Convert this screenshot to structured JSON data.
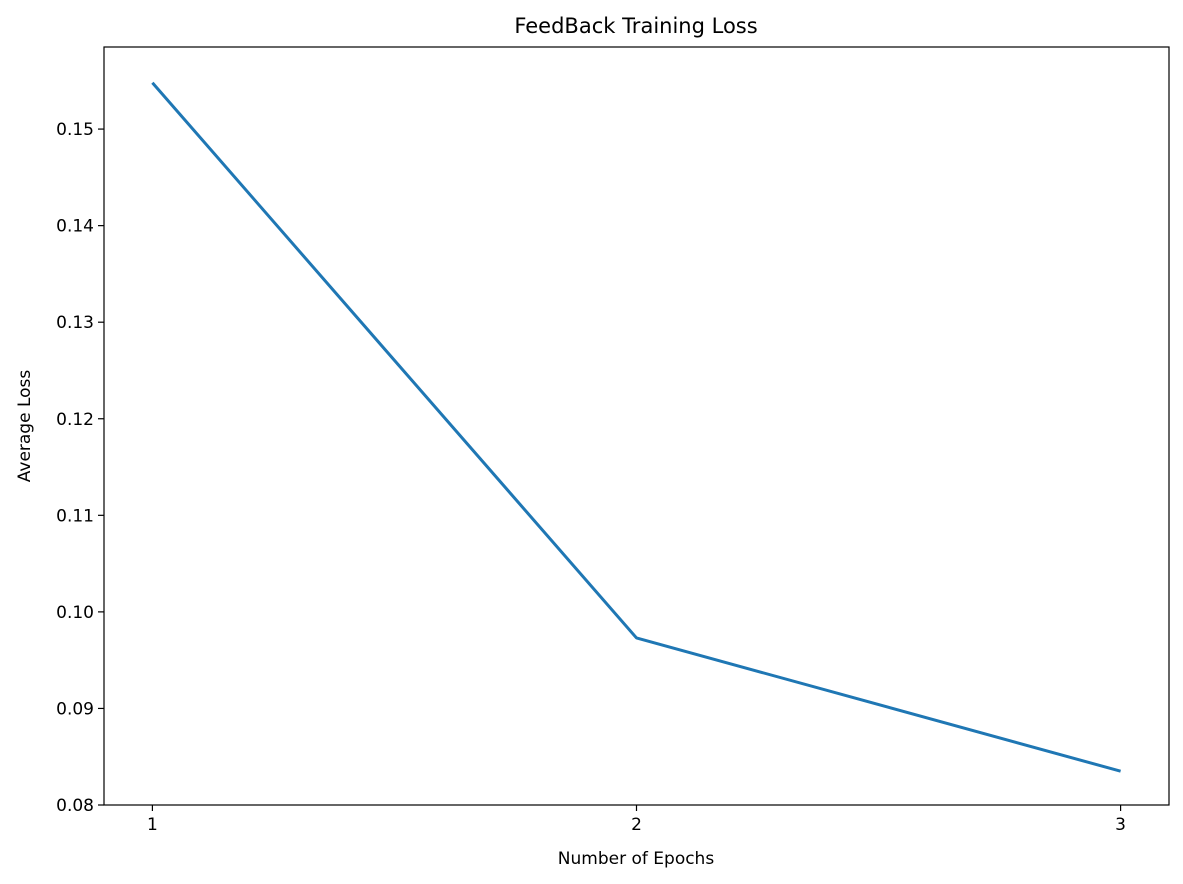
{
  "chart_data": {
    "type": "line",
    "title": "FeedBack Training Loss",
    "xlabel": "Number of Epochs",
    "ylabel": "Average Loss",
    "x": [
      1,
      2,
      3
    ],
    "series": [
      {
        "values": [
          0.1548,
          0.0973,
          0.0835
        ],
        "color": "#1f77b4"
      }
    ],
    "xticks": [
      1,
      2,
      3
    ],
    "xtick_labels": [
      "1",
      "2",
      "3"
    ],
    "yticks": [
      0.08,
      0.09,
      0.1,
      0.11,
      0.12,
      0.13,
      0.14,
      0.15
    ],
    "ytick_labels": [
      "0.08",
      "0.09",
      "0.10",
      "0.11",
      "0.12",
      "0.13",
      "0.14",
      "0.15"
    ],
    "xlim": [
      0.9,
      3.1
    ],
    "ylim": [
      0.08,
      0.1585
    ],
    "grid": false,
    "legend": "none"
  }
}
